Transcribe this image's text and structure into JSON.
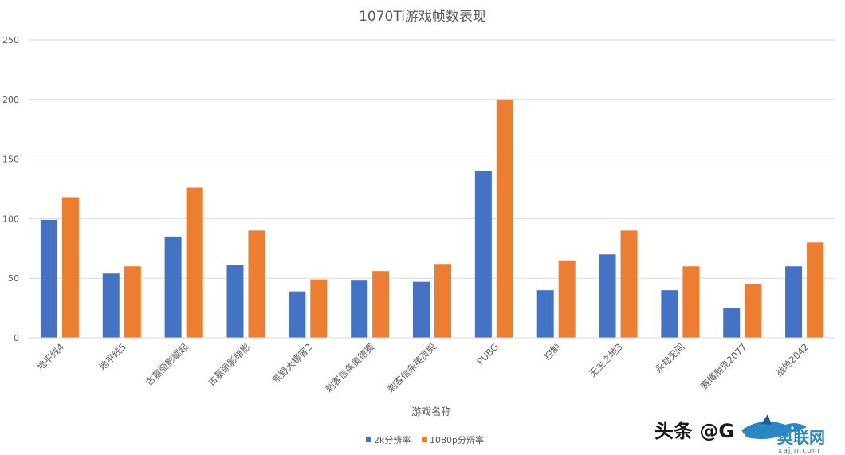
{
  "chart_data": {
    "type": "bar",
    "title": "1070Ti游戏帧数表现",
    "xlabel": "游戏名称",
    "ylabel": "",
    "ylim": [
      0,
      250
    ],
    "yticks": [
      0,
      50,
      100,
      150,
      200,
      250
    ],
    "grid": true,
    "legend_position": "bottom",
    "categories": [
      "地平线4",
      "地平线5",
      "古墓丽影崛起",
      "古墓丽影暗影",
      "荒野大镖客2",
      "刺客信条奥德赛",
      "刺客信条英灵殿",
      "PUBG",
      "控制",
      "无主之地3",
      "永劫无间",
      "赛博朋克2077",
      "战地2042"
    ],
    "series": [
      {
        "name": "2k分辨率",
        "color": "#4472c4",
        "values": [
          99,
          54,
          85,
          61,
          39,
          48,
          47,
          140,
          40,
          70,
          40,
          25,
          60
        ]
      },
      {
        "name": "1080p分辨率",
        "color": "#ed7d31",
        "values": [
          118,
          60,
          126,
          90,
          49,
          56,
          62,
          200,
          65,
          90,
          60,
          45,
          80
        ]
      }
    ]
  },
  "watermark": {
    "text": "头条 @G",
    "logo_text": "奥联网",
    "logo_small": "xajjn.com",
    "icon": "shark-logo-icon"
  }
}
